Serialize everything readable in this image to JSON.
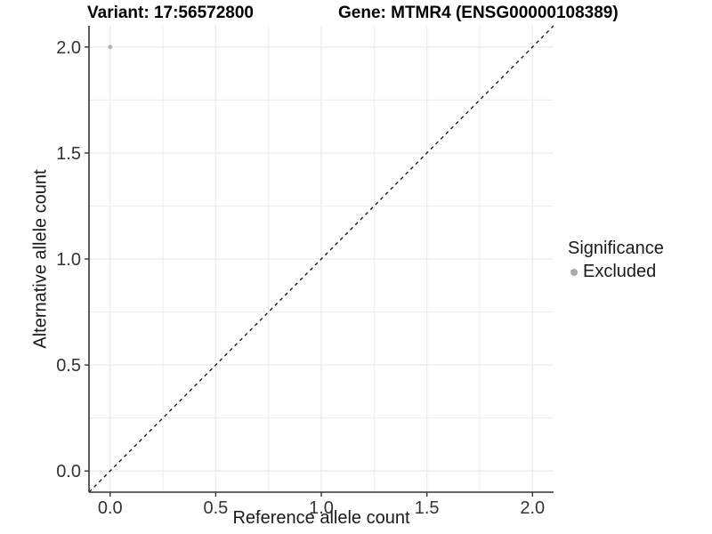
{
  "chart_data": {
    "type": "scatter",
    "titles": [
      "Variant: 17:56572800",
      "Gene: MTMR4 (ENSG00000108389)"
    ],
    "xlabel": "Reference allele count",
    "ylabel": "Alternative allele count",
    "xlim": [
      0,
      2
    ],
    "ylim": [
      0,
      2
    ],
    "expansion_frac": 0.05,
    "x_ticks": {
      "values": [
        0,
        0.5,
        1,
        1.5,
        2
      ],
      "labels": [
        "0.0",
        "0.5",
        "1.0",
        "1.5",
        "2.0"
      ]
    },
    "y_ticks": {
      "values": [
        0,
        0.5,
        1,
        1.5,
        2
      ],
      "labels": [
        "0.0",
        "0.5",
        "1.0",
        "1.5",
        "2.0"
      ]
    },
    "grid": "on",
    "minor_grid": "midpoints",
    "abline": {
      "slope": 1,
      "intercept": 0,
      "linetype": "dashed",
      "color": "#111111"
    },
    "points": [
      {
        "x": 0.0,
        "y": 2.0,
        "series": "Excluded",
        "color": "#b4b4b4"
      }
    ],
    "legend": {
      "title": "Significance",
      "position": "right",
      "items": [
        {
          "label": "Excluded",
          "color": "#aaaaaa",
          "marker": "circle"
        }
      ]
    },
    "style": {
      "background": "#ffffff",
      "grid_color": "#ebebeb",
      "axis_color": "#333333",
      "tick_label_color": "#333333",
      "text_color": "#1a1a1a",
      "title_color": "#000000"
    }
  }
}
